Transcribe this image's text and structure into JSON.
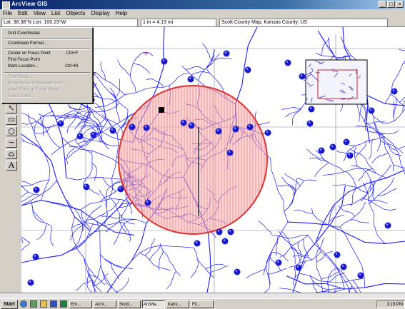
{
  "window": {
    "title": "ArcView GIS"
  },
  "menubar": [
    "File",
    "Edit",
    "View",
    "List",
    "Objects",
    "Display",
    "Help"
  ],
  "infobar": {
    "coordinate": "Lat: 38.38°N Lon: 100.23°W",
    "scale": "1 in = 4.13 mi",
    "layer": "Scott County Map, Kansas County, US"
  },
  "dropdown": {
    "items": [
      {
        "label": "Grid Coordinates",
        "shortcut": "",
        "enabled": true
      },
      {
        "label": "Coordinate Format...",
        "shortcut": "",
        "enabled": true
      },
      {
        "label": "Center on Focus Point",
        "shortcut": "Ctrl+F",
        "enabled": true
      },
      {
        "label": "Find Focus Point",
        "shortcut": "",
        "enabled": true
      },
      {
        "label": "Mark Location...",
        "shortcut": "Ctrl+M",
        "enabled": true
      },
      {
        "label": "Find Focus...",
        "shortcut": "",
        "enabled": false
      },
      {
        "label": "Move Focus to Selected Item",
        "shortcut": "",
        "enabled": false
      },
      {
        "label": "Insert Point at Focus Point",
        "shortcut": "",
        "enabled": false
      },
      {
        "label": "Focus Color...",
        "shortcut": "",
        "enabled": false
      }
    ]
  },
  "tools": [
    "pointer",
    "rectangle",
    "circle",
    "line",
    "polygon",
    "text"
  ],
  "tool_text_glyph": "A",
  "colors": {
    "river": "#1a1aff",
    "buffer_fill": "#f8b4b4",
    "buffer_line": "#e03030",
    "marker": "#1a1acc",
    "titlebar": "#0a246a"
  },
  "taskbar": {
    "start_label": "Start",
    "tasks": [
      "Em...",
      "ArcV...",
      "Scott...",
      "ArcMa...",
      "Kans...",
      "Fil..."
    ],
    "clock": "3:19 PM"
  }
}
